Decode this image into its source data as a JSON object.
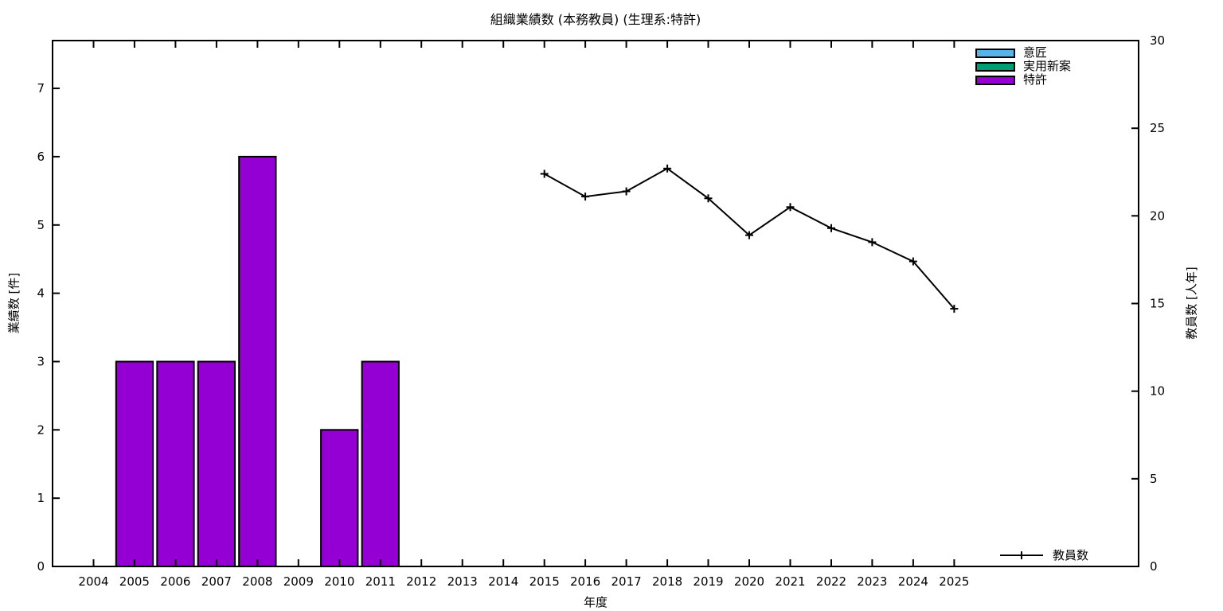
{
  "chart_data": {
    "type": "combo",
    "title": "組織業績数 (本務教員) (生理系:特許)",
    "xlabel": "年度",
    "ylabel_left": "業績数 [件]",
    "ylabel_right": "教員数 [人年]",
    "xlim": [
      2003,
      2029.5
    ],
    "ylim_left": [
      0,
      7.7
    ],
    "ylim_right": [
      0,
      30
    ],
    "x_ticks": [
      2004,
      2005,
      2006,
      2007,
      2008,
      2009,
      2010,
      2011,
      2012,
      2013,
      2014,
      2015,
      2016,
      2017,
      2018,
      2019,
      2020,
      2021,
      2022,
      2023,
      2024,
      2025
    ],
    "y_ticks_left": [
      0,
      1,
      2,
      3,
      4,
      5,
      6,
      7
    ],
    "y_ticks_right": [
      0,
      5,
      10,
      15,
      20,
      25,
      30
    ],
    "grid": false,
    "legend_top_position": "top-right-inside",
    "legend_bottom_position": "bottom-right-inside",
    "bar_width_years": 0.9,
    "bar_series": [
      {
        "name": "意匠",
        "color": "#56b4e9",
        "x": [],
        "values": []
      },
      {
        "name": "実用新案",
        "color": "#009e73",
        "x": [],
        "values": []
      },
      {
        "name": "特許",
        "color": "#9400d3",
        "x": [
          2005,
          2006,
          2007,
          2008,
          2010,
          2011
        ],
        "values": [
          3,
          3,
          3,
          6,
          2,
          3
        ]
      }
    ],
    "line_series": [
      {
        "name": "教員数",
        "color": "#000000",
        "marker": "plus",
        "axis": "right",
        "x": [
          2015,
          2016,
          2017,
          2018,
          2019,
          2020,
          2021,
          2022,
          2023,
          2024,
          2025
        ],
        "values": [
          22.4,
          21.1,
          21.4,
          22.7,
          21.0,
          18.9,
          20.5,
          19.3,
          18.5,
          17.4,
          14.7
        ]
      }
    ]
  }
}
